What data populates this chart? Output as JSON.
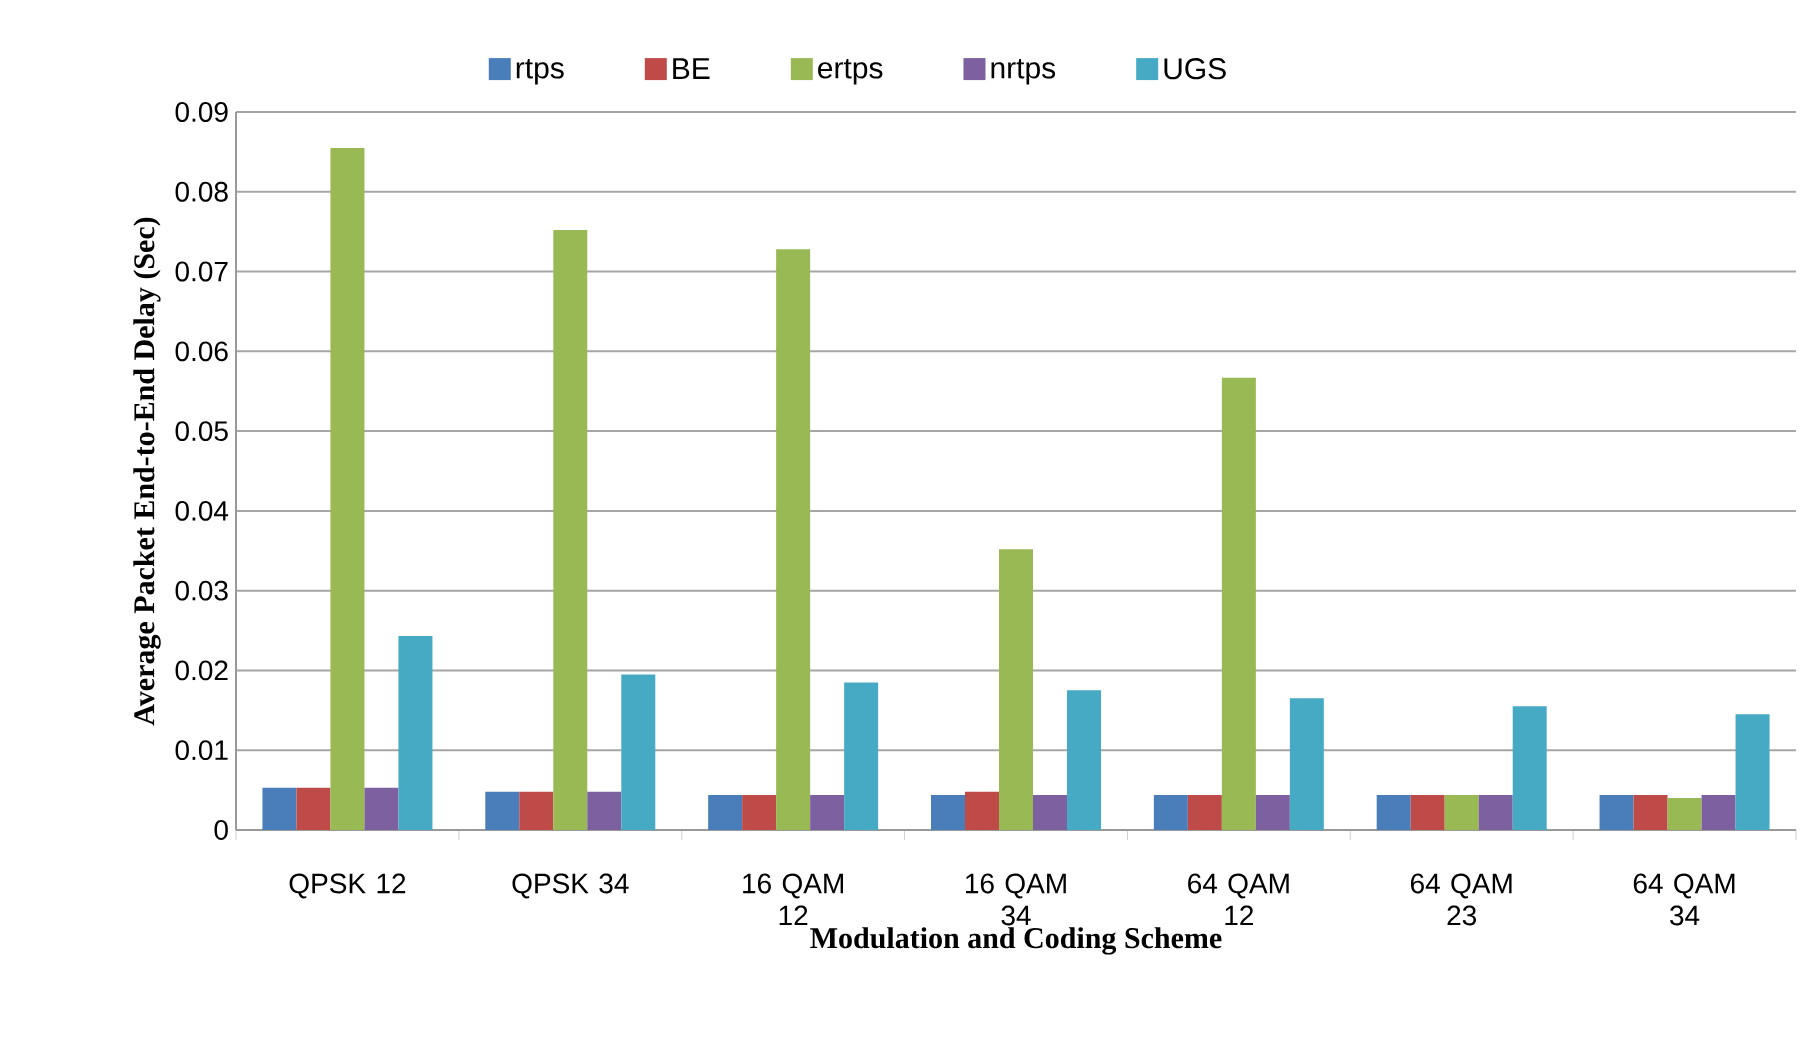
{
  "chart_data": {
    "type": "bar",
    "xlabel": "Modulation and Coding Scheme",
    "ylabel": "Average Packet End-to-End Delay  (Sec)",
    "categories": [
      "QPSK 12",
      "QPSK 34",
      "16 QAM 12",
      "16 QAM 34",
      "64 QAM 12",
      "64 QAM 23",
      "64 QAM 34"
    ],
    "series": [
      {
        "name": "rtps",
        "color": "#4a7ebb",
        "values": [
          0.0053,
          0.0048,
          0.0044,
          0.0044,
          0.0044,
          0.0044,
          0.0044
        ]
      },
      {
        "name": "BE",
        "color": "#be4b48",
        "values": [
          0.0053,
          0.0048,
          0.0044,
          0.0048,
          0.0044,
          0.0044,
          0.0044
        ]
      },
      {
        "name": "ertps",
        "color": "#98b954",
        "values": [
          0.0855,
          0.0752,
          0.0728,
          0.0352,
          0.0567,
          0.0044,
          0.004
        ]
      },
      {
        "name": "nrtps",
        "color": "#7d60a0",
        "values": [
          0.0053,
          0.0048,
          0.0044,
          0.0044,
          0.0044,
          0.0044,
          0.0044
        ]
      },
      {
        "name": "UGS",
        "color": "#46aac5",
        "values": [
          0.0243,
          0.0195,
          0.0185,
          0.0175,
          0.0165,
          0.0155,
          0.0145
        ]
      }
    ],
    "ylim": [
      0,
      0.09
    ],
    "yticks": [
      0,
      0.01,
      0.02,
      0.03,
      0.04,
      0.05,
      0.06,
      0.07,
      0.08,
      0.09
    ],
    "grid": "y",
    "legend": "top"
  }
}
